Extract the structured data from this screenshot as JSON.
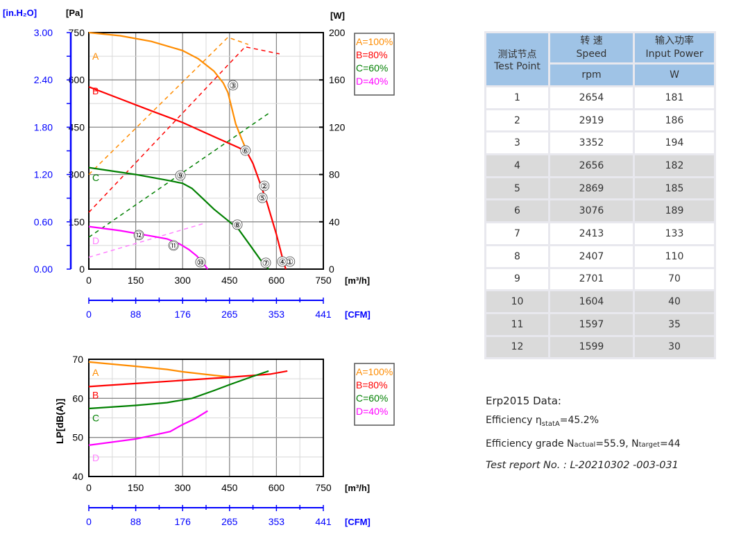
{
  "chart_data": [
    {
      "type": "line",
      "title": "",
      "xlabel": "[m3/h]",
      "x2label": "[CFM]",
      "ylabel": "[Pa]",
      "y2label": "[in.H2O]",
      "yrightlabel": "[W]",
      "xlim": [
        0,
        750
      ],
      "ylim": [
        0,
        750
      ],
      "yright_lim": [
        0,
        200
      ],
      "x_ticks": [
        "0",
        "150",
        "300",
        "450",
        "600",
        "750"
      ],
      "x2_ticks": [
        "0",
        "88",
        "176",
        "265",
        "353",
        "441"
      ],
      "y_ticks": [
        "0",
        "150",
        "300",
        "450",
        "600",
        "750"
      ],
      "y2_ticks": [
        "0.00",
        "0.60",
        "1.20",
        "1.80",
        "2.40",
        "3.00"
      ],
      "yright_ticks": [
        "0",
        "40",
        "80",
        "120",
        "160",
        "200"
      ],
      "grid": true,
      "legend_position": "right",
      "series": [
        {
          "name": "A=100%",
          "label": "A",
          "color": "#ff8c00",
          "pressure": [
            [
              0,
              750
            ],
            [
              100,
              740
            ],
            [
              200,
              722
            ],
            [
              300,
              693
            ],
            [
              350,
              667
            ],
            [
              400,
              628
            ],
            [
              430,
              590
            ],
            [
              445,
              560
            ],
            [
              470,
              460
            ],
            [
              490,
              410
            ],
            [
              505,
              375
            ]
          ],
          "power": [
            [
              0,
              80
            ],
            [
              445,
              196
            ],
            [
              510,
              190
            ]
          ]
        },
        {
          "name": "B=80%",
          "label": "B",
          "color": "#ff0000",
          "pressure": [
            [
              0,
              578
            ],
            [
              100,
              540
            ],
            [
              200,
              502
            ],
            [
              300,
              465
            ],
            [
              400,
              420
            ],
            [
              480,
              385
            ],
            [
              505,
              372
            ],
            [
              525,
              335
            ],
            [
              545,
              280
            ],
            [
              570,
              210
            ],
            [
              600,
              110
            ],
            [
              622,
              25
            ],
            [
              630,
              0
            ]
          ],
          "power": [
            [
              0,
              48
            ],
            [
              500,
              188
            ],
            [
              610,
              182
            ]
          ]
        },
        {
          "name": "C=60%",
          "label": "C",
          "color": "#008000",
          "pressure": [
            [
              0,
              322
            ],
            [
              150,
              300
            ],
            [
              250,
              282
            ],
            [
              300,
              272
            ],
            [
              330,
              256
            ],
            [
              360,
              228
            ],
            [
              400,
              190
            ],
            [
              450,
              150
            ],
            [
              480,
              125
            ],
            [
              520,
              70
            ],
            [
              550,
              28
            ],
            [
              575,
              0
            ]
          ],
          "power": [
            [
              0,
              27
            ],
            [
              577,
              132
            ]
          ]
        },
        {
          "name": "D=40%",
          "label": "D",
          "color": "#ff00ff",
          "pressure": [
            [
              0,
              135
            ],
            [
              100,
              122
            ],
            [
              200,
              105
            ],
            [
              250,
              96
            ],
            [
              290,
              80
            ],
            [
              320,
              62
            ],
            [
              345,
              42
            ],
            [
              365,
              20
            ],
            [
              380,
              0
            ]
          ],
          "power": [
            [
              0,
              10
            ],
            [
              373,
              39
            ]
          ],
          "faint_color": "#ff80ff"
        }
      ],
      "test_points": [
        {
          "label": "①",
          "q": 643,
          "p": 24
        },
        {
          "label": "②",
          "q": 561,
          "p": 264
        },
        {
          "label": "③",
          "q": 461,
          "p": 583
        },
        {
          "label": "④",
          "q": 619,
          "p": 24
        },
        {
          "label": "⑤",
          "q": 555,
          "p": 226
        },
        {
          "label": "⑥",
          "q": 501,
          "p": 376
        },
        {
          "label": "⑦",
          "q": 566,
          "p": 20
        },
        {
          "label": "⑧",
          "q": 475,
          "p": 141
        },
        {
          "label": "⑨",
          "q": 293,
          "p": 297
        },
        {
          "label": "⑩",
          "q": 357,
          "p": 22
        },
        {
          "label": "⑪",
          "q": 271,
          "p": 75
        },
        {
          "label": "⑫",
          "q": 160,
          "p": 108
        }
      ]
    },
    {
      "type": "line",
      "title": "",
      "xlabel": "[m3/h]",
      "x2label": "[CFM]",
      "ylabel": "LP[dB(A)]",
      "xlim": [
        0,
        750
      ],
      "ylim": [
        40,
        70
      ],
      "x_ticks": [
        "0",
        "150",
        "300",
        "450",
        "600",
        "750"
      ],
      "x2_ticks": [
        "0",
        "88",
        "176",
        "265",
        "353",
        "441"
      ],
      "y_ticks": [
        "40",
        "50",
        "60",
        "70"
      ],
      "grid": true,
      "legend_position": "right",
      "series": [
        {
          "name": "A=100%",
          "label": "A",
          "color": "#ff8c00",
          "values": [
            [
              0,
              69.3
            ],
            [
              150,
              68.2
            ],
            [
              250,
              67.4
            ],
            [
              300,
              66.8
            ],
            [
              400,
              65.9
            ],
            [
              450,
              65.5
            ]
          ]
        },
        {
          "name": "B=80%",
          "label": "B",
          "color": "#ff0000",
          "values": [
            [
              0,
              63
            ],
            [
              150,
              63.8
            ],
            [
              300,
              64.6
            ],
            [
              450,
              65.4
            ],
            [
              580,
              66.2
            ],
            [
              635,
              67
            ]
          ]
        },
        {
          "name": "C=60%",
          "label": "C",
          "color": "#008000",
          "values": [
            [
              0,
              57.4
            ],
            [
              150,
              58.2
            ],
            [
              250,
              58.9
            ],
            [
              330,
              60
            ],
            [
              400,
              62
            ],
            [
              450,
              63.5
            ],
            [
              520,
              65.5
            ],
            [
              575,
              67
            ]
          ]
        },
        {
          "name": "D=40%",
          "label": "D",
          "color": "#ff00ff",
          "values": [
            [
              0,
              48
            ],
            [
              150,
              49.6
            ],
            [
              260,
              51.5
            ],
            [
              300,
              53.3
            ],
            [
              340,
              54.8
            ],
            [
              380,
              56.8
            ]
          ],
          "faint_color": "#ff80ff"
        }
      ]
    }
  ],
  "table": {
    "header": {
      "point_cn": "测试节点",
      "point_en": "Test Point",
      "speed_cn": "转 速",
      "speed_en": "Speed",
      "speed_unit": "rpm",
      "power_cn": "输入功率",
      "power_en": "Input Power",
      "power_unit": "W"
    },
    "rows": [
      [
        "1",
        "2654",
        "181"
      ],
      [
        "2",
        "2919",
        "186"
      ],
      [
        "3",
        "3352",
        "194"
      ],
      [
        "4",
        "2656",
        "182"
      ],
      [
        "5",
        "2869",
        "185"
      ],
      [
        "6",
        "3076",
        "189"
      ],
      [
        "7",
        "2413",
        "133"
      ],
      [
        "8",
        "2407",
        "110"
      ],
      [
        "9",
        "2701",
        "70"
      ],
      [
        "10",
        "1604",
        "40"
      ],
      [
        "11",
        "1597",
        "35"
      ],
      [
        "12",
        "1599",
        "30"
      ]
    ],
    "shaded_rows": [
      4,
      5,
      6,
      10,
      11,
      12
    ]
  },
  "erp": {
    "title": "Erp2015  Data:",
    "eff_label": "Efficiency η",
    "eff_sub": "statA",
    "eff_value": "=45.2%",
    "grade_label": "Efficiency grade  N",
    "grade_sub1": "actual",
    "grade_val1": "=55.9, N",
    "grade_sub2": "target",
    "grade_val2": "=44",
    "report": "Test report No. : L-20210302 -003-031"
  }
}
